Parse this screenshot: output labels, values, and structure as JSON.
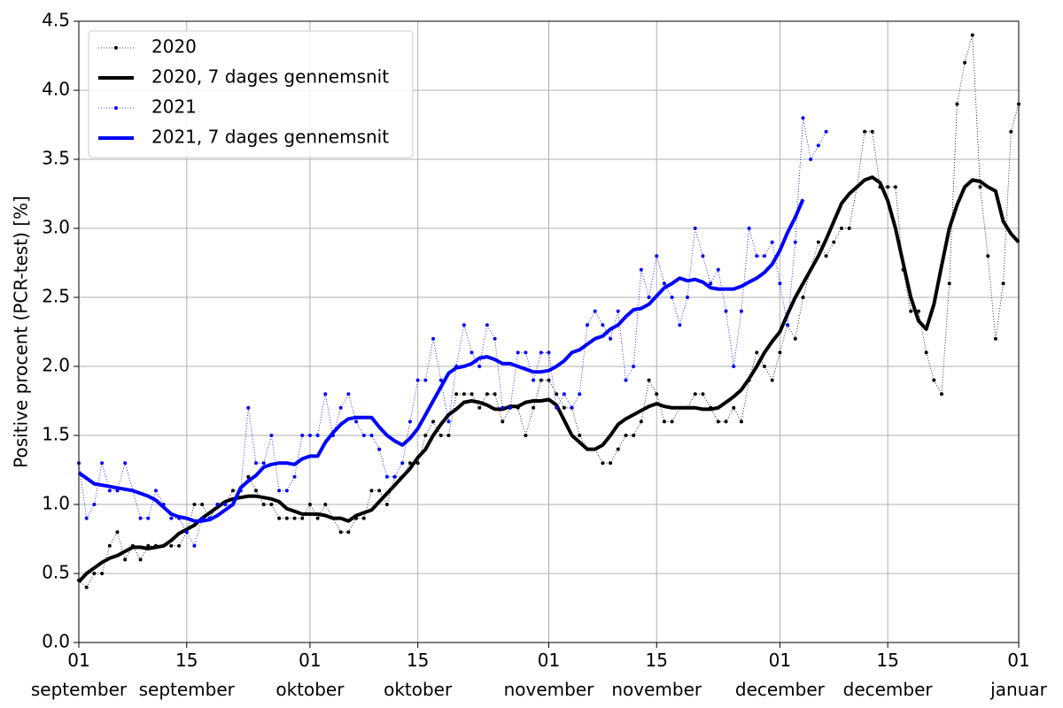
{
  "chart_data": {
    "type": "line",
    "ylabel": "Positive procent (PCR-test) [%]",
    "x": [
      "09-01",
      "09-02",
      "09-03",
      "09-04",
      "09-05",
      "09-06",
      "09-07",
      "09-08",
      "09-09",
      "09-10",
      "09-11",
      "09-12",
      "09-13",
      "09-14",
      "09-15",
      "09-16",
      "09-17",
      "09-18",
      "09-19",
      "09-20",
      "09-21",
      "09-22",
      "09-23",
      "09-24",
      "09-25",
      "09-26",
      "09-27",
      "09-28",
      "09-29",
      "09-30",
      "10-01",
      "10-02",
      "10-03",
      "10-04",
      "10-05",
      "10-06",
      "10-07",
      "10-08",
      "10-09",
      "10-10",
      "10-11",
      "10-12",
      "10-13",
      "10-14",
      "10-15",
      "10-16",
      "10-17",
      "10-18",
      "10-19",
      "10-20",
      "10-21",
      "10-22",
      "10-23",
      "10-24",
      "10-25",
      "10-26",
      "10-27",
      "10-28",
      "10-29",
      "10-30",
      "10-31",
      "11-01",
      "11-02",
      "11-03",
      "11-04",
      "11-05",
      "11-06",
      "11-07",
      "11-08",
      "11-09",
      "11-10",
      "11-11",
      "11-12",
      "11-13",
      "11-14",
      "11-15",
      "11-16",
      "11-17",
      "11-18",
      "11-19",
      "11-20",
      "11-21",
      "11-22",
      "11-23",
      "11-24",
      "11-25",
      "11-26",
      "11-27",
      "11-28",
      "11-29",
      "11-30",
      "12-01",
      "12-02",
      "12-03",
      "12-04",
      "12-05",
      "12-06",
      "12-07",
      "12-08",
      "12-09",
      "12-10",
      "12-11",
      "12-12",
      "12-13",
      "12-14",
      "12-15",
      "12-16",
      "12-17",
      "12-18",
      "12-19",
      "12-20",
      "12-21",
      "12-22",
      "12-23",
      "12-24",
      "12-25",
      "12-26",
      "12-27",
      "12-28",
      "12-29",
      "12-30",
      "12-31",
      "01-01"
    ],
    "series": [
      {
        "name": "2020",
        "color": "#000000",
        "linestyle": "dotted",
        "marker": true,
        "values": [
          0.45,
          0.4,
          0.5,
          0.5,
          0.7,
          0.8,
          0.6,
          0.7,
          0.6,
          0.7,
          0.7,
          0.7,
          0.7,
          0.7,
          0.8,
          1.0,
          1.0,
          0.9,
          1.0,
          1.0,
          1.1,
          1.1,
          1.2,
          1.1,
          1.0,
          1.0,
          0.9,
          0.9,
          0.9,
          0.9,
          1.0,
          0.9,
          1.0,
          0.9,
          0.8,
          0.8,
          0.9,
          0.9,
          1.1,
          1.1,
          1.0,
          1.2,
          1.2,
          1.3,
          1.3,
          1.5,
          1.6,
          1.5,
          1.5,
          1.8,
          1.8,
          1.8,
          1.7,
          1.8,
          1.8,
          1.6,
          1.7,
          1.7,
          1.5,
          1.7,
          1.9,
          1.9,
          1.8,
          1.7,
          1.7,
          1.5,
          1.4,
          1.4,
          1.3,
          1.3,
          1.4,
          1.5,
          1.5,
          1.6,
          1.9,
          1.8,
          1.6,
          1.6,
          1.7,
          1.7,
          1.8,
          1.8,
          1.7,
          1.6,
          1.6,
          1.7,
          1.6,
          1.9,
          2.1,
          2.0,
          1.9,
          2.1,
          2.3,
          2.2,
          2.5,
          2.7,
          2.9,
          2.8,
          2.9,
          3.0,
          3.0,
          3.3,
          3.7,
          3.7,
          3.3,
          3.3,
          3.3,
          2.7,
          2.4,
          2.4,
          2.1,
          1.9,
          1.8,
          2.6,
          3.9,
          4.2,
          4.4,
          3.3,
          2.8,
          2.2,
          2.6,
          3.7,
          3.9
        ]
      },
      {
        "name": "2020, 7 dages gennemsnit",
        "color": "#000000",
        "linestyle": "solid",
        "marker": false,
        "values": [
          0.44,
          0.5,
          0.54,
          0.58,
          0.61,
          0.63,
          0.66,
          0.69,
          0.69,
          0.68,
          0.69,
          0.7,
          0.74,
          0.79,
          0.82,
          0.85,
          0.9,
          0.94,
          0.98,
          1.02,
          1.04,
          1.05,
          1.06,
          1.06,
          1.05,
          1.04,
          1.02,
          0.97,
          0.95,
          0.93,
          0.93,
          0.93,
          0.92,
          0.9,
          0.9,
          0.88,
          0.92,
          0.94,
          0.96,
          1.02,
          1.08,
          1.14,
          1.2,
          1.26,
          1.34,
          1.4,
          1.5,
          1.58,
          1.65,
          1.69,
          1.74,
          1.75,
          1.74,
          1.72,
          1.69,
          1.69,
          1.71,
          1.71,
          1.74,
          1.75,
          1.75,
          1.76,
          1.72,
          1.61,
          1.5,
          1.45,
          1.4,
          1.4,
          1.43,
          1.5,
          1.58,
          1.62,
          1.65,
          1.68,
          1.71,
          1.73,
          1.71,
          1.7,
          1.7,
          1.7,
          1.7,
          1.69,
          1.69,
          1.7,
          1.74,
          1.78,
          1.83,
          1.91,
          2.0,
          2.1,
          2.18,
          2.25,
          2.38,
          2.5,
          2.6,
          2.7,
          2.8,
          2.92,
          3.05,
          3.18,
          3.25,
          3.3,
          3.35,
          3.37,
          3.33,
          3.2,
          3.0,
          2.75,
          2.5,
          2.33,
          2.27,
          2.45,
          2.73,
          3.0,
          3.17,
          3.3,
          3.35,
          3.34,
          3.3,
          3.27,
          3.05,
          2.96,
          2.9
        ]
      },
      {
        "name": "2021",
        "color": "#0000ff",
        "linestyle": "dotted",
        "marker": true,
        "values": [
          1.3,
          0.9,
          1.0,
          1.3,
          1.1,
          1.1,
          1.3,
          1.1,
          0.9,
          0.9,
          1.1,
          1.0,
          0.9,
          0.9,
          0.8,
          0.7,
          0.9,
          0.9,
          1.0,
          1.0,
          1.0,
          1.1,
          1.7,
          1.3,
          1.3,
          1.5,
          1.1,
          1.1,
          1.2,
          1.5,
          1.5,
          1.5,
          1.8,
          1.5,
          1.7,
          1.8,
          1.6,
          1.5,
          1.5,
          1.4,
          1.2,
          1.2,
          1.3,
          1.6,
          1.9,
          1.9,
          2.2,
          1.9,
          1.6,
          2.0,
          2.3,
          2.1,
          2.0,
          2.3,
          2.2,
          1.7,
          1.7,
          2.1,
          2.1,
          1.9,
          2.1,
          2.1,
          1.7,
          1.8,
          1.7,
          1.8,
          2.3,
          2.4,
          2.3,
          2.2,
          2.4,
          1.9,
          2.0,
          2.7,
          2.5,
          2.8,
          2.6,
          2.5,
          2.3,
          2.5,
          3.0,
          2.8,
          2.6,
          2.7,
          2.4,
          2.0,
          2.4,
          3.0,
          2.8,
          2.8,
          2.9,
          2.6,
          2.3,
          2.9,
          3.8,
          3.5,
          3.6,
          3.7,
          null,
          null,
          null,
          null,
          null,
          null,
          null,
          null,
          null,
          null,
          null,
          null,
          null,
          null,
          null,
          null,
          null,
          null,
          null,
          null,
          null,
          null,
          null,
          null,
          null
        ]
      },
      {
        "name": "2021, 7 dages gennemsnit",
        "color": "#0000ff",
        "linestyle": "solid",
        "marker": false,
        "values": [
          1.23,
          1.19,
          1.15,
          1.14,
          1.13,
          1.12,
          1.11,
          1.1,
          1.08,
          1.06,
          1.03,
          0.98,
          0.93,
          0.91,
          0.9,
          0.88,
          0.88,
          0.89,
          0.92,
          0.96,
          1.0,
          1.12,
          1.17,
          1.21,
          1.27,
          1.29,
          1.3,
          1.3,
          1.29,
          1.33,
          1.35,
          1.35,
          1.45,
          1.52,
          1.58,
          1.62,
          1.63,
          1.63,
          1.63,
          1.56,
          1.5,
          1.46,
          1.43,
          1.48,
          1.55,
          1.65,
          1.75,
          1.85,
          1.95,
          1.99,
          2.0,
          2.02,
          2.06,
          2.07,
          2.05,
          2.02,
          2.02,
          2.0,
          1.98,
          1.96,
          1.96,
          1.97,
          2.0,
          2.04,
          2.1,
          2.12,
          2.16,
          2.2,
          2.22,
          2.27,
          2.3,
          2.36,
          2.41,
          2.42,
          2.45,
          2.51,
          2.57,
          2.6,
          2.64,
          2.62,
          2.63,
          2.61,
          2.57,
          2.56,
          2.56,
          2.56,
          2.58,
          2.61,
          2.64,
          2.68,
          2.74,
          2.84,
          2.97,
          3.08,
          3.21,
          null,
          null,
          null,
          null,
          null,
          null,
          null,
          null,
          null,
          null,
          null,
          null,
          null,
          null,
          null,
          null,
          null,
          null,
          null,
          null,
          null,
          null,
          null,
          null,
          null,
          null,
          null,
          null
        ]
      }
    ],
    "xlim": [
      "09-01",
      "01-01"
    ],
    "xticks": [
      {
        "value": "09-01",
        "label": "01\nseptember"
      },
      {
        "value": "09-15",
        "label": "15\nseptember"
      },
      {
        "value": "10-01",
        "label": "01\noktober"
      },
      {
        "value": "10-15",
        "label": "15\noktober"
      },
      {
        "value": "11-01",
        "label": "01\nnovember"
      },
      {
        "value": "11-15",
        "label": "15\nnovember"
      },
      {
        "value": "12-01",
        "label": "01\ndecember"
      },
      {
        "value": "12-15",
        "label": "15\ndecember"
      },
      {
        "value": "01-01",
        "label": "01\njanuar"
      }
    ],
    "ylim": [
      0,
      4.5
    ],
    "yticks": [
      {
        "value": 0,
        "label": "0.0"
      },
      {
        "value": 0.5,
        "label": "0.5"
      },
      {
        "value": 1,
        "label": "1.0"
      },
      {
        "value": 1.5,
        "label": "1.5"
      },
      {
        "value": 2,
        "label": "2.0"
      },
      {
        "value": 2.5,
        "label": "2.5"
      },
      {
        "value": 3,
        "label": "3.0"
      },
      {
        "value": 3.5,
        "label": "3.5"
      },
      {
        "value": 4,
        "label": "4.0"
      },
      {
        "value": 4.5,
        "label": "4.5"
      }
    ],
    "grid": true,
    "legend": "upper left"
  }
}
